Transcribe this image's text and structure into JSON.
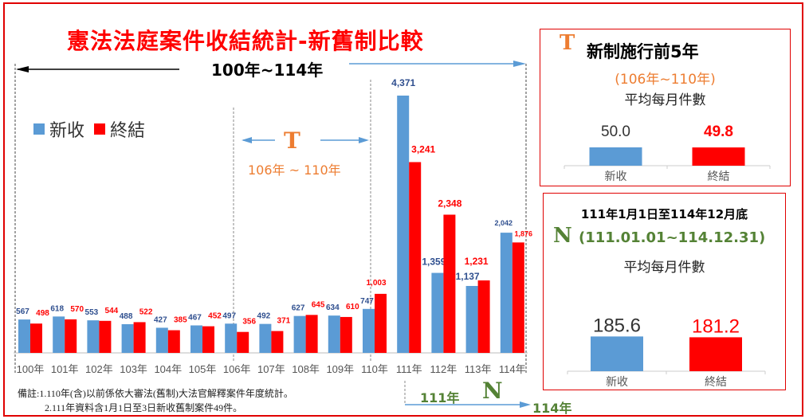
{
  "title": "憲法法庭案件收結統計-新舊制比較",
  "period_label": "100年~114年",
  "legend": [
    {
      "name": "新收",
      "color": "#5b9bd5"
    },
    {
      "name": "終結",
      "color": "#ff0000"
    }
  ],
  "t_marker": {
    "letter": "T",
    "range": "106年 ~ 110年"
  },
  "n_marker": {
    "letter": "N",
    "start": "111年",
    "end": "114年"
  },
  "notes": [
    "備註:1.110年(含)以前係依大審法(舊制)大法官解釋案件年度統計。",
    "2.111年資料含1月1日至3日新收舊制案件49件。"
  ],
  "chart_data": [
    {
      "type": "bar",
      "title": "憲法法庭案件收結統計-新舊制比較",
      "xlabel": "",
      "ylabel": "",
      "categories": [
        "100年",
        "101年",
        "102年",
        "103年",
        "104年",
        "105年",
        "106年",
        "107年",
        "108年",
        "109年",
        "110年",
        "111年",
        "112年",
        "113年",
        "114年"
      ],
      "series": [
        {
          "name": "新收",
          "color": "#5b9bd5",
          "label_color": "#2f4f8f",
          "values": [
            567,
            618,
            553,
            488,
            427,
            467,
            497,
            492,
            627,
            634,
            747,
            4371,
            1359,
            1137,
            2042
          ],
          "labels": [
            "567",
            "618",
            "553",
            "488",
            "427",
            "467",
            "497",
            "492",
            "627",
            "634",
            "747",
            "4,371",
            "1,359",
            "1,137",
            "2,042"
          ]
        },
        {
          "name": "終結",
          "color": "#ff0000",
          "label_color": "#ff0000",
          "values": [
            498,
            570,
            544,
            522,
            385,
            452,
            356,
            371,
            645,
            610,
            1003,
            3241,
            2348,
            1231,
            1876
          ],
          "labels": [
            "498",
            "570",
            "544",
            "522",
            "385",
            "452",
            "356",
            "371",
            "645",
            "610",
            "1,003",
            "3,241",
            "2,348",
            "1,231",
            "1,876"
          ]
        }
      ],
      "ylim": [
        0,
        4371
      ],
      "grid": false,
      "legend_position": "top-left"
    },
    {
      "type": "bar",
      "title": "新制施行前5年",
      "subtitle": "(106年~110年)",
      "caption": "平均每月件數",
      "categories": [
        "新收",
        "終結"
      ],
      "values": [
        50.0,
        49.8
      ],
      "labels": [
        "50.0",
        "49.8"
      ],
      "colors": [
        "#5b9bd5",
        "#ff0000"
      ],
      "ylim": [
        0,
        200
      ]
    },
    {
      "type": "bar",
      "title": "111年1月1日至114年12月底",
      "subtitle": "(111.01.01~114.12.31)",
      "caption": "平均每月件數",
      "categories": [
        "新收",
        "終結"
      ],
      "values": [
        185.6,
        181.2
      ],
      "labels": [
        "185.6",
        "181.2"
      ],
      "colors": [
        "#5b9bd5",
        "#ff0000"
      ],
      "ylim": [
        0,
        200
      ]
    }
  ]
}
